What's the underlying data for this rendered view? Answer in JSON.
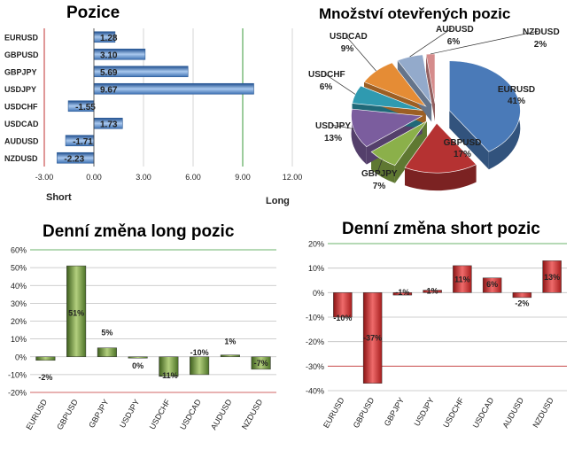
{
  "chart_data": [
    {
      "type": "bar",
      "orientation": "horizontal",
      "title": "Pozice",
      "categories": [
        "EURUSD",
        "GBPUSD",
        "GBPJPY",
        "USDJPY",
        "USDCHF",
        "USDCAD",
        "AUDUSD",
        "NZDUSD"
      ],
      "values": [
        1.28,
        3.1,
        5.69,
        9.67,
        -1.55,
        1.73,
        -1.71,
        -2.23
      ],
      "value_labels": [
        "1.28",
        "3.10",
        "5.69",
        "9.67",
        "-1.55",
        "1.73",
        "-1.71",
        "-2.23"
      ],
      "xlim": [
        -3,
        12
      ],
      "xticks": [
        "-3.00",
        "0.00",
        "3.00",
        "6.00",
        "9.00",
        "12.00"
      ],
      "left_label": "Short",
      "right_label": "Long"
    },
    {
      "type": "pie",
      "title": "Množství otevřených pozic",
      "slices": [
        {
          "label": "EURUSD",
          "value": 41,
          "text": "41%",
          "color": "#4a7ab8"
        },
        {
          "label": "GBPUSD",
          "value": 17,
          "text": "17%",
          "color": "#b53232"
        },
        {
          "label": "GBPJPY",
          "value": 7,
          "text": "7%",
          "color": "#8bb04a"
        },
        {
          "label": "USDJPY",
          "value": 13,
          "text": "13%",
          "color": "#7b5d9e"
        },
        {
          "label": "USDCHF",
          "value": 6,
          "text": "6%",
          "color": "#2f9ab0"
        },
        {
          "label": "USDCAD",
          "value": 9,
          "text": "9%",
          "color": "#e58c35"
        },
        {
          "label": "AUDUSD",
          "value": 6,
          "text": "6%",
          "color": "#93aacb"
        },
        {
          "label": "NZDUSD",
          "value": 2,
          "text": "2%",
          "color": "#d58c8c"
        }
      ]
    },
    {
      "type": "bar",
      "title": "Denní změna long pozic",
      "categories": [
        "EURUSD",
        "GBPUSD",
        "GBPJPY",
        "USDJPY",
        "USDCHF",
        "USDCAD",
        "AUDUSD",
        "NZDUSD"
      ],
      "values": [
        -2,
        51,
        5,
        0,
        -11,
        -10,
        1,
        -7
      ],
      "value_labels": [
        "-2%",
        "51%",
        "5%",
        "0%",
        "-11%",
        "-10%",
        "1%",
        "-7%"
      ],
      "ylim": [
        -20,
        60
      ],
      "yticks": [
        "60%",
        "50%",
        "40%",
        "30%",
        "20%",
        "10%",
        "0%",
        "-10%",
        "-20%"
      ]
    },
    {
      "type": "bar",
      "title": "Denní změna short pozic",
      "categories": [
        "EURUSD",
        "GBPUSD",
        "GBPJPY",
        "USDJPY",
        "USDCHF",
        "USDCAD",
        "AUDUSD",
        "NZDUSD"
      ],
      "values": [
        -10,
        -37,
        -1,
        1,
        11,
        6,
        -2,
        13
      ],
      "value_labels": [
        "-10%",
        "-37%",
        "-1%",
        "1%",
        "11%",
        "6%",
        "-2%",
        "13%"
      ],
      "ylim": [
        -40,
        20
      ],
      "yticks": [
        "20%",
        "10%",
        "0%",
        "-10%",
        "-20%",
        "-30%",
        "-40%"
      ]
    }
  ],
  "colors": {
    "blue_bar": "#5a8fcf",
    "green_bar": "#6d9a3a",
    "red_bar": "#c02a2a",
    "grid_green": "#3a9a3a",
    "grid_red": "#c03030"
  }
}
